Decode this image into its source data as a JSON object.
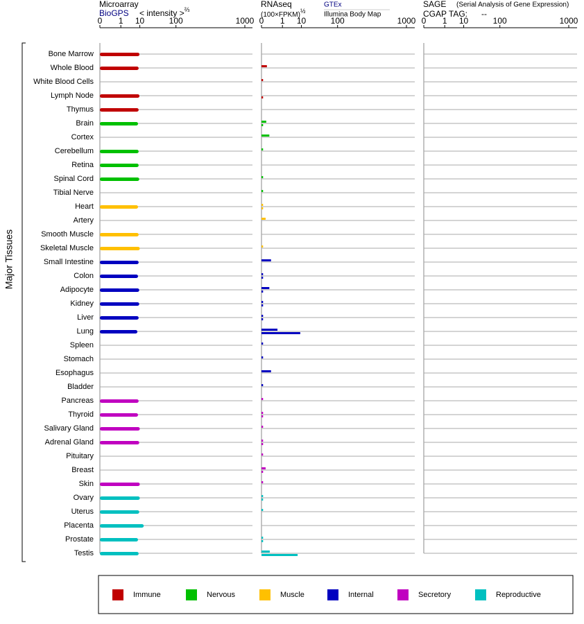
{
  "y_label": "Major Tissues",
  "categories": [
    "Bone Marrow",
    "Whole Blood",
    "White Blood Cells",
    "Lymph Node",
    "Thymus",
    "Brain",
    "Cortex",
    "Cerebellum",
    "Retina",
    "Spinal Cord",
    "Tibial Nerve",
    "Heart",
    "Artery",
    "Smooth Muscle",
    "Skeletal Muscle",
    "Small Intestine",
    "Colon",
    "Adipocyte",
    "Kidney",
    "Liver",
    "Lung",
    "Spleen",
    "Stomach",
    "Esophagus",
    "Bladder",
    "Pancreas",
    "Thyroid",
    "Salivary Gland",
    "Adrenal Gland",
    "Pituitary",
    "Breast",
    "Skin",
    "Ovary",
    "Uterus",
    "Placenta",
    "Prostate",
    "Testis"
  ],
  "colors": [
    "#c00000",
    "#c00000",
    "#c00000",
    "#c00000",
    "#c00000",
    "#00c000",
    "#00c000",
    "#00c000",
    "#00c000",
    "#00c000",
    "#00c000",
    "#ffc000",
    "#ffc000",
    "#ffc000",
    "#ffc000",
    "#0000c0",
    "#0000c0",
    "#0000c0",
    "#0000c0",
    "#0000c0",
    "#0000c0",
    "#0000c0",
    "#0000c0",
    "#0000c0",
    "#0000c0",
    "#c000c0",
    "#c000c0",
    "#c000c0",
    "#c000c0",
    "#c000c0",
    "#c000c0",
    "#c000c0",
    "#00c0c0",
    "#00c0c0",
    "#00c0c0",
    "#00c0c0",
    "#00c0c0"
  ],
  "legend": [
    {
      "name": "Immune",
      "color": "#c00000"
    },
    {
      "name": "Nervous",
      "color": "#00c000"
    },
    {
      "name": "Muscle",
      "color": "#ffc000"
    },
    {
      "name": "Internal",
      "color": "#0000c0"
    },
    {
      "name": "Secretory",
      "color": "#c000c0"
    },
    {
      "name": "Reproductive",
      "color": "#00c0c0"
    }
  ],
  "chart_data": [
    {
      "type": "bar",
      "title": "Microarray",
      "axis_label": "< intensity >",
      "axis_exponent": "⅔",
      "xlim": [
        0,
        1000
      ],
      "xticks": [
        0,
        1,
        10,
        100,
        1000
      ],
      "xscale_exponent": 0.28,
      "series": [
        {
          "name": "BioGPS",
          "color": "#000080",
          "values": [
            9.7,
            9,
            null,
            9.7,
            9,
            8.5,
            null,
            9,
            9,
            9.5,
            null,
            8.5,
            null,
            9,
            10,
            9,
            8.5,
            9.5,
            9.5,
            9,
            8,
            null,
            null,
            null,
            null,
            9,
            8.5,
            10,
            9.5,
            null,
            null,
            10,
            10,
            9.5,
            14,
            8.5,
            9
          ]
        }
      ]
    },
    {
      "type": "bar",
      "title": "RNAseq",
      "axis_label": "(100×FPKM)",
      "axis_exponent": "½",
      "xlim": [
        0,
        1000
      ],
      "xticks": [
        0,
        1,
        10,
        100,
        1000
      ],
      "xscale_exponent": 0.28,
      "series": [
        {
          "name": "GTEx",
          "color": "#000080",
          "values": [
            null,
            0.008,
            0.0001,
            null,
            null,
            0.005,
            0.03,
            0.0001,
            null,
            0.0001,
            0.0001,
            0.0001,
            0.003,
            null,
            0.0001,
            0.06,
            0.0001,
            0.03,
            0.0001,
            0.0001,
            0.38,
            0.0001,
            0.0001,
            0.06,
            0.0001,
            0.0001,
            0.0001,
            0.0001,
            0.0001,
            0.0001,
            0.003,
            0.0001,
            0.0001,
            0.0001,
            null,
            0.0001,
            0.036
          ]
        },
        {
          "name": "Illumina Body Map",
          "color": "#000000",
          "values": [
            null,
            null,
            null,
            0.0001,
            null,
            0.0001,
            null,
            null,
            null,
            null,
            null,
            0.0001,
            null,
            null,
            null,
            null,
            0.0001,
            0.0001,
            0.0001,
            0.0001,
            9,
            null,
            null,
            null,
            null,
            null,
            0.0001,
            null,
            0.0001,
            null,
            0.0001,
            null,
            0.0001,
            null,
            null,
            0.0001,
            7
          ]
        }
      ]
    },
    {
      "type": "bar",
      "title": "SAGE",
      "subtitle": "(Serial Analysis of Gene Expression)",
      "tag_label": "CGAP TAG:",
      "tag_value": "--",
      "xlim": [
        0,
        1000
      ],
      "xticks": [
        0,
        1,
        10,
        100,
        1000
      ],
      "xscale_exponent": 0.28,
      "series": []
    }
  ]
}
